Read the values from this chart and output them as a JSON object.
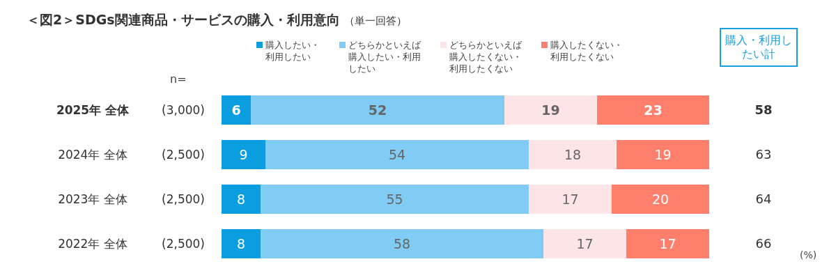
{
  "chart_data": {
    "type": "bar",
    "title": "＜図2＞SDGs関連商品・サービスの購入・利用意向",
    "subtitle": "（単一回答）",
    "orientation": "horizontal",
    "stacked": true,
    "data_labels": true,
    "legend": "top",
    "grid": false,
    "categories": [
      "2025年 全体",
      "2024年 全体",
      "2023年 全体",
      "2022年 全体"
    ],
    "series": [
      {
        "name": "購入したい・利用したい",
        "color": "#0a9ee0",
        "values": [
          6,
          9,
          8,
          8
        ]
      },
      {
        "name": "どちらかといえば購入したい・利用したい",
        "color": "#80ccf5",
        "values": [
          52,
          54,
          55,
          58
        ]
      },
      {
        "name": "どちらかといえば購入したくない・利用したくない",
        "color": "#fde4e7",
        "values": [
          19,
          18,
          17,
          17
        ]
      },
      {
        "name": "購入したくない・利用したくない",
        "color": "#ff7f6d",
        "values": [
          23,
          19,
          20,
          17
        ]
      }
    ],
    "annotations": [
      "n=",
      "(3,000)",
      "(2,500)",
      "(2,500)",
      "(2,500)",
      "購入・利用したい計",
      "58",
      "63",
      "64",
      "66",
      "(%)"
    ]
  }
}
